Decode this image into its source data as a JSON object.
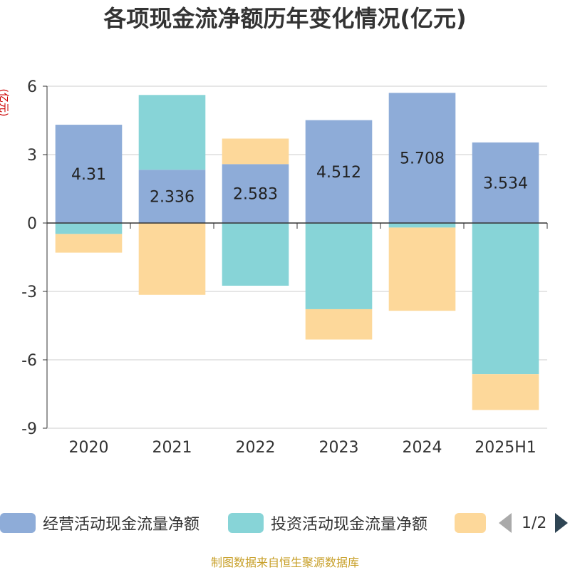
{
  "title": "各项现金流净额历年变化情况(亿元)",
  "unit_label": "(亿元)",
  "source": "制图数据来自恒生聚源数据库",
  "legend": {
    "items": [
      {
        "label": "经营活动现金流量净额",
        "color": "#8eacd8"
      },
      {
        "label": "投资活动现金流量净额",
        "color": "#87d4d7"
      },
      {
        "label": "",
        "color": "#fdd89a"
      }
    ],
    "page_indicator": "1/2"
  },
  "chart_data": {
    "type": "bar",
    "stacked": true,
    "categories": [
      "2020",
      "2021",
      "2022",
      "2023",
      "2024",
      "2025H1"
    ],
    "ylim": [
      -9,
      6
    ],
    "yticks": [
      6,
      3,
      0,
      -3,
      -6,
      -9
    ],
    "grid": true,
    "series": [
      {
        "name": "经营活动现金流量净额",
        "color": "#8eacd8",
        "values": [
          4.31,
          2.336,
          2.583,
          4.512,
          5.708,
          3.534
        ],
        "show_labels": true
      },
      {
        "name": "投资活动现金流量净额",
        "color": "#87d4d7",
        "values": [
          -0.48,
          3.28,
          -2.75,
          -3.78,
          -0.2,
          -6.63
        ],
        "show_labels": false
      },
      {
        "name": "",
        "color": "#fdd89a",
        "values": [
          -0.82,
          -3.15,
          1.12,
          -1.33,
          -3.65,
          -1.57
        ],
        "show_labels": false
      }
    ],
    "data_labels": [
      "4.31",
      "2.336",
      "2.583",
      "4.512",
      "5.708",
      "3.534"
    ]
  }
}
